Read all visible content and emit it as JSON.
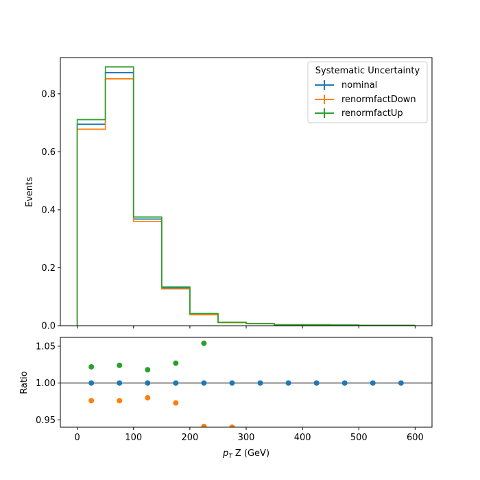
{
  "chart_data": [
    {
      "type": "line",
      "drawstyle": "steps",
      "ylabel": "Events",
      "xlim": [
        -30,
        630
      ],
      "ylim": [
        0,
        0.925
      ],
      "yticks": [
        0.0,
        0.2,
        0.4,
        0.6,
        0.8
      ],
      "ytick_labels": [
        "0.0",
        "0.2",
        "0.4",
        "0.6",
        "0.8"
      ],
      "bin_edges": [
        0,
        50,
        100,
        150,
        200,
        250,
        300,
        350,
        400,
        450,
        500,
        550,
        600
      ],
      "legend": {
        "title": "Systematic Uncertainty",
        "placement": "upper right"
      },
      "series": [
        {
          "name": "nominal",
          "color": "#1f77b4",
          "values": [
            0.695,
            0.873,
            0.368,
            0.13,
            0.04,
            0.012,
            0.007,
            0.003,
            0.003,
            0.002,
            0.001,
            0.001
          ]
        },
        {
          "name": "renormfactDown",
          "color": "#ff7f0e",
          "values": [
            0.678,
            0.852,
            0.36,
            0.127,
            0.038,
            0.011,
            0.007,
            0.003,
            0.003,
            0.002,
            0.001,
            0.001
          ]
        },
        {
          "name": "renormfactUp",
          "color": "#2ca02c",
          "values": [
            0.711,
            0.893,
            0.375,
            0.134,
            0.042,
            0.012,
            0.007,
            0.003,
            0.003,
            0.002,
            0.001,
            0.001
          ]
        }
      ]
    },
    {
      "type": "scatter",
      "xlabel": "p_T Z (GeV)",
      "ylabel": "Ratio",
      "xlim": [
        -30,
        630
      ],
      "ylim": [
        0.94,
        1.062
      ],
      "xticks": [
        0,
        100,
        200,
        300,
        400,
        500,
        600
      ],
      "xtick_labels": [
        "0",
        "100",
        "200",
        "300",
        "400",
        "500",
        "600"
      ],
      "yticks": [
        0.95,
        1.0,
        1.05
      ],
      "ytick_labels": [
        "0.95",
        "1.00",
        "1.05"
      ],
      "reference_line": 1.0,
      "x": [
        25,
        75,
        125,
        175,
        225,
        275,
        325,
        375,
        425,
        475,
        525,
        575
      ],
      "series": [
        {
          "name": "nominal",
          "color": "#1f77b4",
          "values": [
            1.0,
            1.0,
            1.0,
            1.0,
            1.0,
            1.0,
            1.0,
            1.0,
            1.0,
            1.0,
            1.0,
            1.0
          ]
        },
        {
          "name": "renormfactDown",
          "color": "#ff7f0e",
          "values": [
            0.976,
            0.976,
            0.98,
            0.973,
            0.941,
            0.94,
            null,
            null,
            null,
            null,
            null,
            null
          ]
        },
        {
          "name": "renormfactUp",
          "color": "#2ca02c",
          "values": [
            1.022,
            1.024,
            1.018,
            1.027,
            1.054,
            null,
            null,
            null,
            null,
            null,
            null,
            null
          ]
        }
      ]
    }
  ]
}
